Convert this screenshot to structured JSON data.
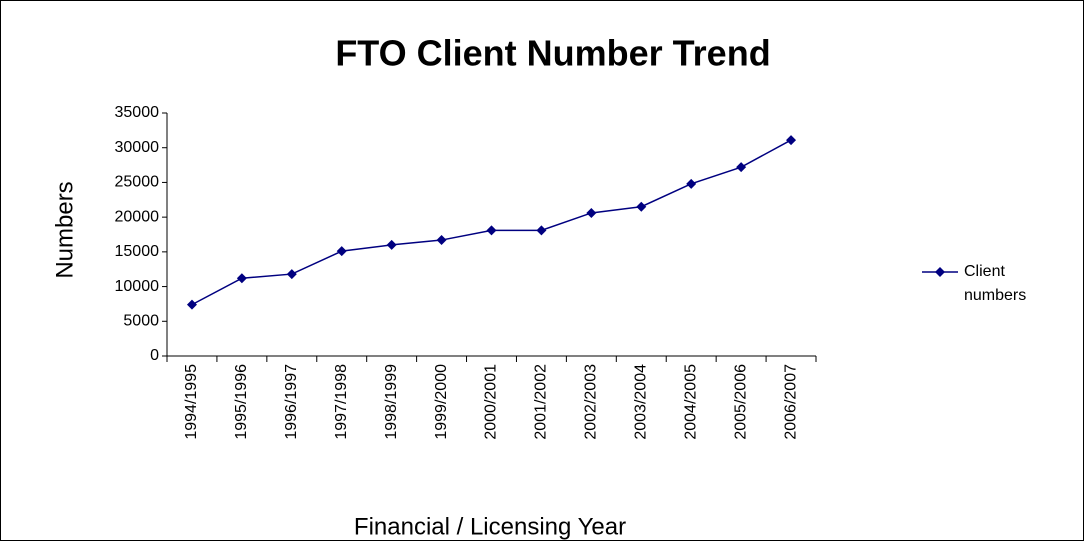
{
  "chart_data": {
    "type": "line",
    "title": "FTO Client Number Trend",
    "x_label": "Financial / Licensing Year",
    "y_label": "Numbers",
    "categories": [
      "1994/1995",
      "1995/1996",
      "1996/1997",
      "1997/1998",
      "1998/1999",
      "1999/2000",
      "2000/2001",
      "2001/2002",
      "2002/2003",
      "2003/2004",
      "2004/2005",
      "2005/2006",
      "2006/2007"
    ],
    "series": [
      {
        "name": "Client numbers",
        "color": "#000080",
        "values": [
          7400,
          11200,
          11800,
          15100,
          16000,
          16700,
          18100,
          18100,
          20600,
          21500,
          24800,
          27200,
          31100
        ]
      }
    ],
    "ylim": [
      0,
      35000
    ],
    "yticks": [
      0,
      5000,
      10000,
      15000,
      20000,
      25000,
      30000,
      35000
    ],
    "grid": false,
    "legend": "right"
  }
}
